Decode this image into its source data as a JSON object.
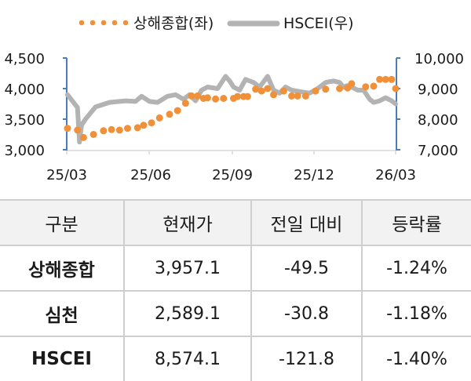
{
  "chart_data": {
    "type": "line",
    "title": "",
    "legend": {
      "position": "top",
      "entries": [
        {
          "name": "상해종합(좌)",
          "style": "dotted",
          "color": "#f0913a",
          "axis": "left"
        },
        {
          "name": "HSCEI(우)",
          "style": "solid",
          "color": "#b3b3b3",
          "axis": "right"
        }
      ]
    },
    "x_ticks": [
      "25/03",
      "25/06",
      "25/09",
      "25/12",
      "26/03"
    ],
    "left_axis": {
      "ticks": [
        "3,000",
        "3,500",
        "4,000",
        "4,500"
      ],
      "range": [
        3000,
        4500
      ],
      "color": "#4a7ebb"
    },
    "right_axis": {
      "ticks": [
        "7,000",
        "8,000",
        "9,000",
        "10,000"
      ],
      "range": [
        7000,
        10000
      ],
      "color": "#4a7ebb"
    },
    "grid": false,
    "series": [
      {
        "name": "상해종합(좌)",
        "axis": "left",
        "x": [
          0.0,
          0.5,
          0.8,
          1.3,
          1.8,
          2.2,
          2.6,
          3.0,
          3.5,
          3.8,
          4.2,
          4.6,
          5.1,
          5.5,
          5.9,
          6.2,
          6.5,
          6.8,
          7.0,
          7.4,
          7.8,
          8.3,
          8.5,
          8.8,
          9.0,
          9.4,
          9.7,
          10.0,
          10.3,
          10.8,
          11.2,
          11.5,
          11.9,
          12.4,
          12.9,
          13.6,
          14.0,
          14.2,
          14.9,
          15.3,
          15.6,
          15.9,
          16.2,
          16.4
        ],
        "values": [
          3350,
          3320,
          3200,
          3250,
          3310,
          3330,
          3320,
          3350,
          3360,
          3400,
          3440,
          3520,
          3580,
          3640,
          3760,
          3880,
          3880,
          3840,
          3850,
          3830,
          3840,
          3840,
          3870,
          3870,
          3870,
          3990,
          3960,
          4000,
          3900,
          3960,
          3880,
          3880,
          3880,
          3960,
          3990,
          4000,
          4010,
          4080,
          4030,
          4040,
          4150,
          4150,
          4150,
          4000
        ]
      },
      {
        "name": "HSCEI(우)",
        "axis": "right",
        "x": [
          0.0,
          0.5,
          0.6,
          0.7,
          0.9,
          1.4,
          2.1,
          2.9,
          3.4,
          3.7,
          4.1,
          4.5,
          5.0,
          5.4,
          5.8,
          6.1,
          6.4,
          6.7,
          7.0,
          7.5,
          7.9,
          8.1,
          8.3,
          8.6,
          8.9,
          9.3,
          9.6,
          10.0,
          10.3,
          10.6,
          10.9,
          11.2,
          11.6,
          12.1,
          12.5,
          12.9,
          13.3,
          13.6,
          13.8,
          14.0,
          14.2,
          14.5,
          14.8,
          15.1,
          15.3,
          15.6,
          15.9,
          16.2,
          16.4
        ],
        "values": [
          8800,
          8380,
          7250,
          7800,
          8000,
          8400,
          8550,
          8600,
          8580,
          8750,
          8580,
          8550,
          8750,
          8800,
          8650,
          8800,
          8600,
          8950,
          9050,
          9000,
          9400,
          9250,
          9050,
          8950,
          9300,
          9200,
          9050,
          9400,
          8950,
          8850,
          9050,
          8950,
          8900,
          8850,
          9000,
          9200,
          9250,
          9200,
          9050,
          9100,
          9050,
          8950,
          8950,
          8650,
          8550,
          8600,
          8700,
          8600,
          8500
        ]
      }
    ]
  },
  "table": {
    "headers": [
      "구분",
      "현재가",
      "전일 대비",
      "등락률"
    ],
    "rows": [
      {
        "name": "상해종합",
        "price": "3,957.1",
        "change": "-49.5",
        "pct": "-1.24%"
      },
      {
        "name": "심천",
        "price": "2,589.1",
        "change": "-30.8",
        "pct": "-1.18%"
      },
      {
        "name": "HSCEI",
        "price": "8,574.1",
        "change": "-121.8",
        "pct": "-1.40%"
      }
    ]
  }
}
